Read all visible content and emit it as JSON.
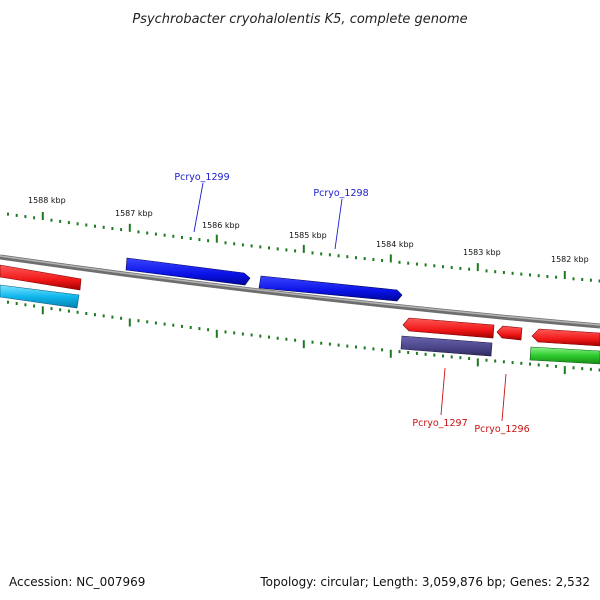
{
  "title": "Psychrobacter cryohalolentis K5, complete genome",
  "footer": {
    "accession": "Accession: NC_007969",
    "topology": "Topology: circular; Length: 3,059,876 bp; Genes: 2,532"
  },
  "scale": {
    "labels": [
      "1588 kbp",
      "1587 kbp",
      "1586 kbp",
      "1585 kbp",
      "1584 kbp",
      "1583 kbp",
      "1582 kbp"
    ]
  },
  "gene_labels": [
    {
      "name": "Pcryo_1299",
      "strand": "forward"
    },
    {
      "name": "Pcryo_1298",
      "strand": "forward"
    },
    {
      "name": "Pcryo_1297",
      "strand": "reverse"
    },
    {
      "name": "Pcryo_1296",
      "strand": "reverse"
    }
  ],
  "colors": {
    "forward_label": "#1a1acc",
    "reverse_label": "#cc1111",
    "backbone": "#888888",
    "ticks": "#1f7a1f",
    "blue_gene": "#0a12e6",
    "red_gene": "#f01818",
    "cyan_gene": "#10b8ee",
    "purple_gene": "#4a4488",
    "green_gene": "#2ecc2e"
  }
}
